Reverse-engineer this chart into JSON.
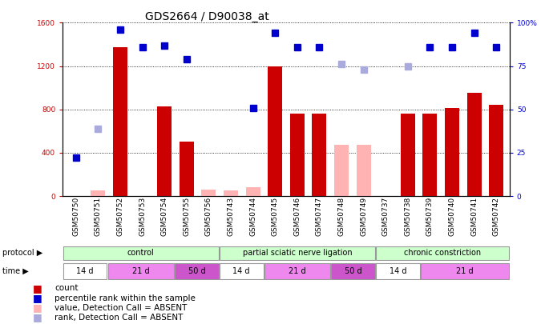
{
  "title": "GDS2664 / D90038_at",
  "samples": [
    "GSM50750",
    "GSM50751",
    "GSM50752",
    "GSM50753",
    "GSM50754",
    "GSM50755",
    "GSM50756",
    "GSM50743",
    "GSM50744",
    "GSM50745",
    "GSM50746",
    "GSM50747",
    "GSM50748",
    "GSM50749",
    "GSM50737",
    "GSM50738",
    "GSM50739",
    "GSM50740",
    "GSM50741",
    "GSM50742"
  ],
  "count_values": [
    0,
    0,
    1370,
    0,
    830,
    500,
    0,
    0,
    0,
    1200,
    760,
    760,
    0,
    0,
    0,
    760,
    760,
    810,
    950,
    840
  ],
  "count_absent": [
    false,
    true,
    false,
    false,
    false,
    false,
    true,
    true,
    true,
    false,
    false,
    false,
    true,
    true,
    false,
    false,
    false,
    false,
    false,
    false
  ],
  "count_absent_values": [
    0,
    55,
    0,
    0,
    0,
    0,
    60,
    50,
    80,
    0,
    0,
    0,
    470,
    470,
    0,
    0,
    0,
    0,
    0,
    0
  ],
  "rank_pct": [
    22,
    0,
    96,
    86,
    87,
    79,
    0,
    0,
    51,
    94,
    86,
    86,
    0,
    0,
    0,
    0,
    86,
    86,
    94,
    86
  ],
  "rank_absent": [
    false,
    true,
    false,
    false,
    false,
    false,
    true,
    false,
    false,
    false,
    false,
    false,
    true,
    true,
    false,
    true,
    false,
    false,
    false,
    false
  ],
  "rank_absent_pct": [
    0,
    39,
    0,
    0,
    0,
    0,
    0,
    0,
    0,
    0,
    0,
    0,
    76,
    73,
    0,
    75,
    0,
    0,
    0,
    0
  ],
  "ylim_left": [
    0,
    1600
  ],
  "ylim_right": [
    0,
    100
  ],
  "yticks_left": [
    0,
    400,
    800,
    1200,
    1600
  ],
  "yticks_right": [
    0,
    25,
    50,
    75,
    100
  ],
  "protocol_groups": [
    {
      "label": "control",
      "start": 0,
      "end": 7
    },
    {
      "label": "partial sciatic nerve ligation",
      "start": 7,
      "end": 14
    },
    {
      "label": "chronic constriction",
      "start": 14,
      "end": 20
    }
  ],
  "time_groups": [
    {
      "label": "14 d",
      "start": 0,
      "end": 2,
      "color": "#ffffff"
    },
    {
      "label": "21 d",
      "start": 2,
      "end": 5,
      "color": "#ee88ee"
    },
    {
      "label": "50 d",
      "start": 5,
      "end": 7,
      "color": "#cc55cc"
    },
    {
      "label": "14 d",
      "start": 7,
      "end": 9,
      "color": "#ffffff"
    },
    {
      "label": "21 d",
      "start": 9,
      "end": 12,
      "color": "#ee88ee"
    },
    {
      "label": "50 d",
      "start": 12,
      "end": 14,
      "color": "#cc55cc"
    },
    {
      "label": "14 d",
      "start": 14,
      "end": 16,
      "color": "#ffffff"
    },
    {
      "label": "21 d",
      "start": 16,
      "end": 20,
      "color": "#ee88ee"
    }
  ],
  "bar_color_present": "#cc0000",
  "bar_color_absent": "#ffb3b3",
  "rank_color_present": "#0000cc",
  "rank_color_absent": "#aaaadd",
  "protocol_color": "#ccffcc",
  "title_fontsize": 10,
  "tick_fontsize": 6.5,
  "legend_fontsize": 8
}
